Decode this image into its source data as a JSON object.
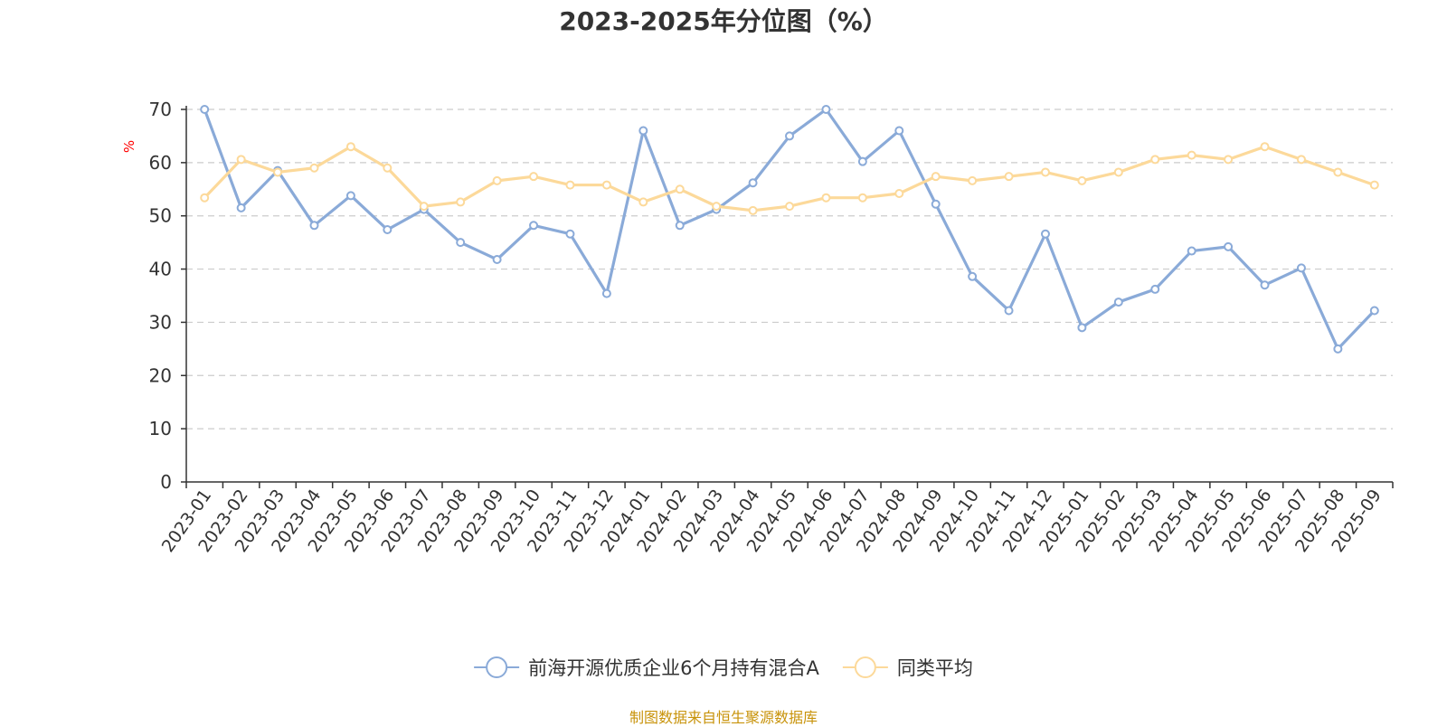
{
  "chart_data": {
    "type": "line",
    "title": "2023-2025年分位图（%）",
    "ylabel": "%",
    "xlabel": "",
    "ylim": [
      0,
      70
    ],
    "yticks": [
      0,
      10,
      20,
      30,
      40,
      50,
      60,
      70
    ],
    "grid": "horizontal-dashed",
    "legend_position": "bottom",
    "categories": [
      "2023-01",
      "2023-02",
      "2023-03",
      "2023-04",
      "2023-05",
      "2023-06",
      "2023-07",
      "2023-08",
      "2023-09",
      "2023-10",
      "2023-11",
      "2023-12",
      "2024-01",
      "2024-02",
      "2024-03",
      "2024-04",
      "2024-05",
      "2024-06",
      "2024-07",
      "2024-08",
      "2024-09",
      "2024-10",
      "2024-11",
      "2024-12",
      "2025-01",
      "2025-02",
      "2025-03",
      "2025-04",
      "2025-05",
      "2025-06",
      "2025-07",
      "2025-08",
      "2025-09"
    ],
    "series": [
      {
        "name": "前海开源优质企业6个月持有混合A",
        "color": "#8aaad8",
        "values": [
          70,
          51.5,
          58.5,
          48.2,
          53.8,
          47.4,
          51.2,
          45,
          41.8,
          48.2,
          46.6,
          35.4,
          66,
          48.2,
          51.2,
          56.2,
          65,
          70,
          60.2,
          66,
          52.2,
          38.6,
          32.2,
          46.6,
          29,
          33.8,
          36.2,
          43.4,
          44.2,
          37,
          40.2,
          25,
          32.2
        ]
      },
      {
        "name": "同类平均",
        "color": "#fcd99a",
        "values": [
          53.4,
          60.6,
          58.2,
          59,
          63,
          59,
          51.8,
          52.6,
          56.6,
          57.4,
          55.8,
          55.8,
          52.6,
          55,
          51.8,
          51,
          51.8,
          53.4,
          53.4,
          54.2,
          57.4,
          56.6,
          57.4,
          58.2,
          56.6,
          58.2,
          60.6,
          61.4,
          60.6,
          63,
          60.6,
          58.2,
          55.8
        ]
      }
    ]
  },
  "colors": {
    "axis": "#333333",
    "grid": "#cccccc",
    "unit_label": "#ff0000",
    "footer": "#c8930a"
  },
  "footer": {
    "source": "制图数据来自恒生聚源数据库"
  }
}
